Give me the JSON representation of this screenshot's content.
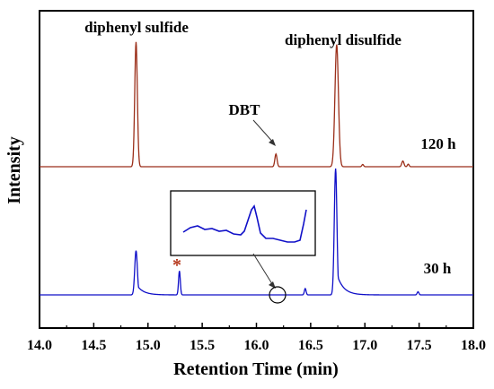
{
  "chart_data": {
    "type": "line",
    "xlabel": "Retention Time (min)",
    "ylabel": "Intensity",
    "xlim": [
      14.0,
      18.0
    ],
    "x_ticks": [
      "14.0",
      "14.5",
      "15.0",
      "15.5",
      "16.0",
      "16.5",
      "17.0",
      "17.5",
      "18.0"
    ],
    "grid": false,
    "annotations": {
      "diphenyl_sulfide": "diphenyl sulfide",
      "diphenyl_disulfide": "diphenyl disulfide",
      "dbt": "DBT",
      "asterisk": "*",
      "label_120h": "120 h",
      "label_30h": "30 h"
    },
    "series": [
      {
        "name": "120 h",
        "color": "#9b2f1a",
        "baseline": 0.55,
        "peaks": [
          {
            "x": 14.89,
            "height": 0.98,
            "width": 0.012
          },
          {
            "x": 16.18,
            "height": 0.1,
            "width": 0.01
          },
          {
            "x": 16.74,
            "height": 0.96,
            "width": 0.016
          },
          {
            "x": 16.98,
            "height": 0.018,
            "width": 0.008
          },
          {
            "x": 17.35,
            "height": 0.045,
            "width": 0.01
          },
          {
            "x": 17.4,
            "height": 0.02,
            "width": 0.008
          }
        ]
      },
      {
        "name": "30 h",
        "color": "#1010c8",
        "baseline": 0.0,
        "peaks": [
          {
            "x": 14.89,
            "height": 0.35,
            "width": 0.012,
            "tail": 0.25
          },
          {
            "x": 15.29,
            "height": 0.19,
            "width": 0.008
          },
          {
            "x": 16.45,
            "height": 0.05,
            "width": 0.008
          },
          {
            "x": 16.73,
            "height": 1.0,
            "width": 0.012,
            "tail": 0.2
          },
          {
            "x": 17.49,
            "height": 0.025,
            "width": 0.008
          }
        ]
      }
    ]
  }
}
